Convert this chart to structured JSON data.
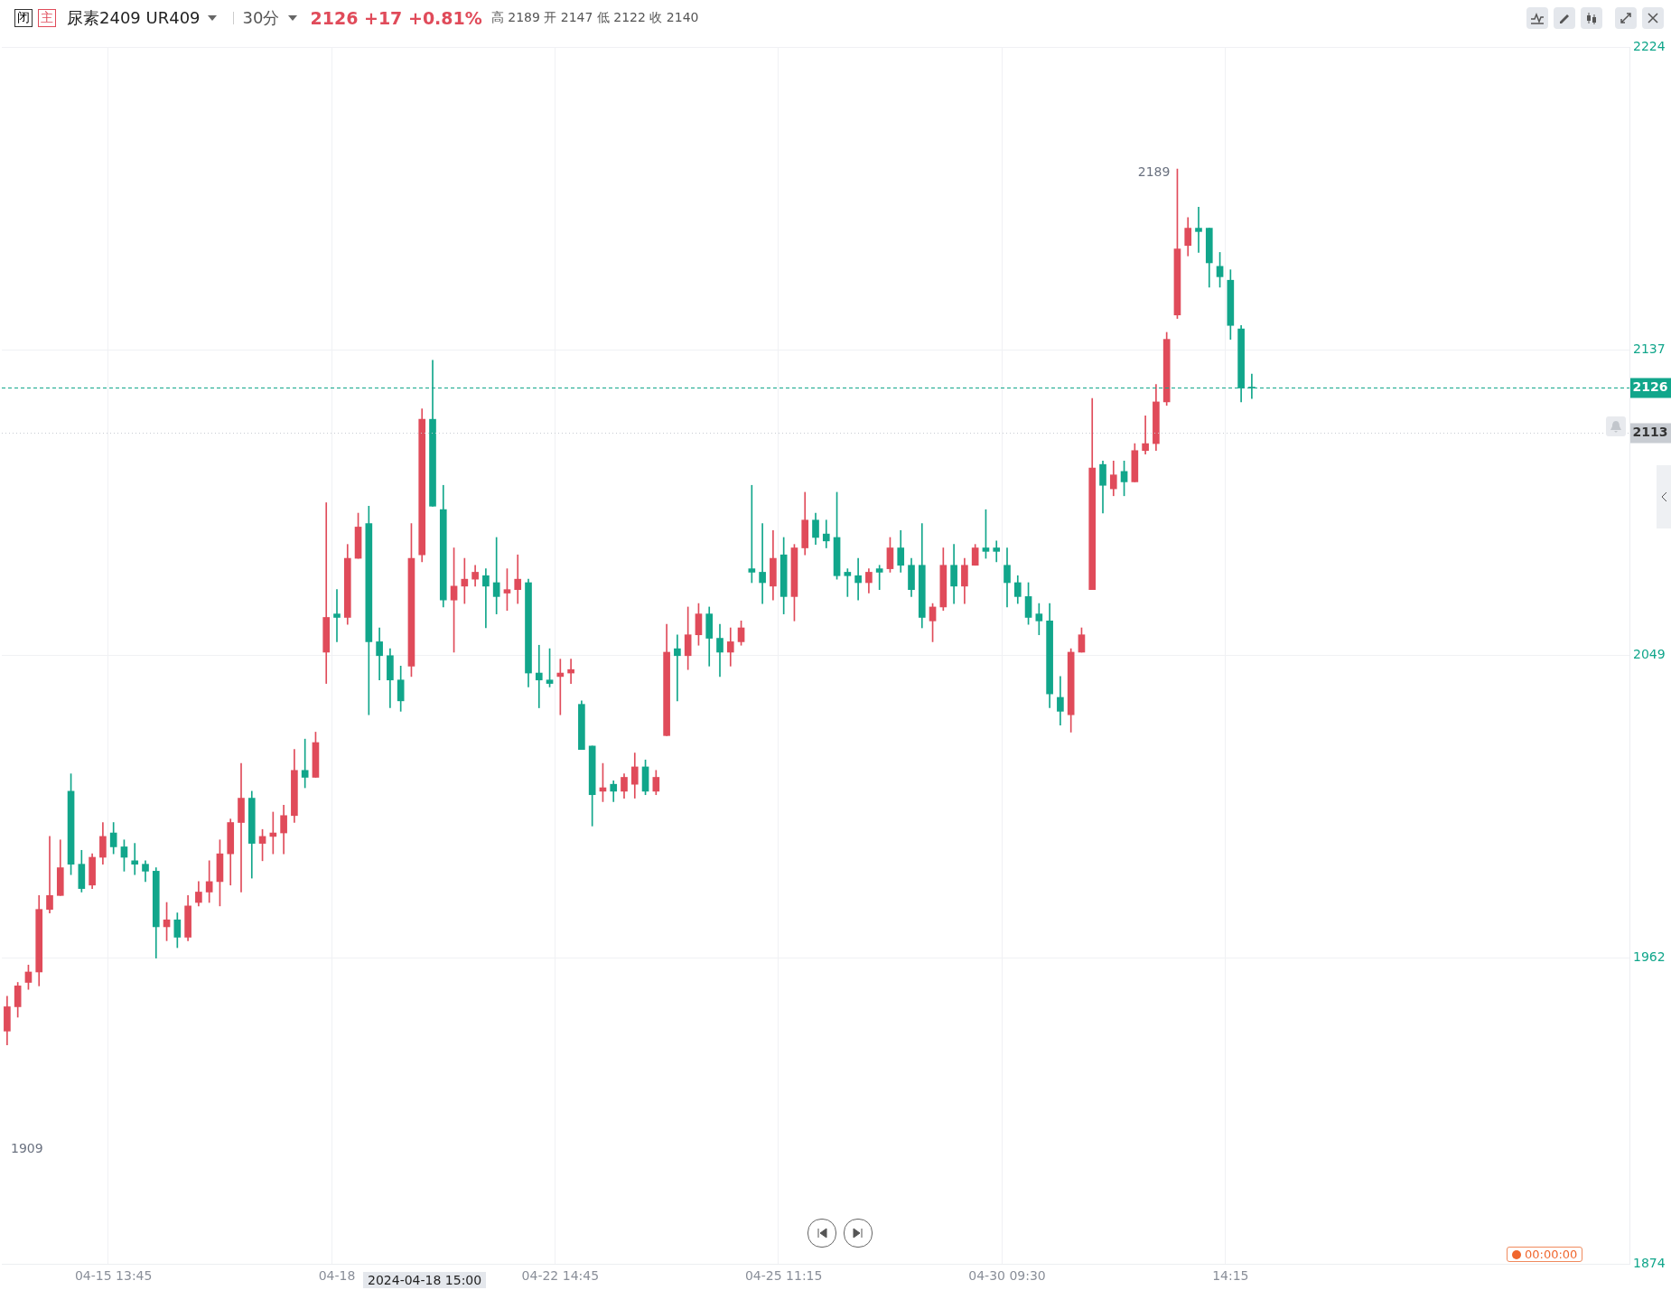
{
  "chart_data": {
    "type": "candlestick",
    "title": "尿素2409 UR409",
    "subtitle": "30分",
    "categories": [
      null,
      null,
      null,
      null,
      null,
      null,
      null,
      null,
      null,
      null,
      "04-15 13:45",
      null,
      null,
      null,
      null,
      null,
      null,
      null,
      null,
      null,
      null,
      null,
      null,
      null,
      null,
      null,
      null,
      null,
      null,
      null,
      null,
      "04-18",
      null,
      null,
      null,
      null,
      null,
      null,
      null,
      null,
      null,
      null,
      null,
      null,
      null,
      null,
      null,
      null,
      null,
      null,
      null,
      null,
      "04-22 14:45",
      null,
      null,
      null,
      null,
      null,
      null,
      null,
      null,
      null,
      null,
      null,
      null,
      null,
      null,
      null,
      null,
      null,
      null,
      null,
      null,
      "04-25 11:15",
      null,
      null,
      null,
      null,
      null,
      null,
      null,
      null,
      null,
      null,
      null,
      null,
      null,
      null,
      null,
      null,
      null,
      null,
      null,
      null,
      "04-30 09:30",
      null,
      null,
      null,
      null,
      null,
      null,
      null,
      null,
      null,
      null,
      null,
      null,
      null,
      null,
      null,
      null,
      null,
      null,
      null,
      null,
      "14:15",
      null,
      null,
      null,
      null,
      null,
      null,
      null,
      null,
      null,
      null,
      null,
      null,
      null,
      null,
      null,
      null,
      null,
      null,
      null,
      null,
      null,
      null,
      null,
      null,
      null,
      null,
      null,
      null,
      null,
      null,
      null,
      null,
      null,
      null,
      null,
      null,
      null
    ],
    "ohlc": [
      [
        1941,
        1951,
        1937,
        1948
      ],
      [
        1948,
        1955,
        1945,
        1954
      ],
      [
        1955,
        1960,
        1953,
        1958
      ],
      [
        1958,
        1980,
        1954,
        1976
      ],
      [
        1976,
        1997,
        1975,
        1980
      ],
      [
        1980,
        1996,
        1980,
        1988
      ],
      [
        2010,
        2015,
        1986,
        1989
      ],
      [
        1989,
        1993,
        1981,
        1982
      ],
      [
        1983,
        1992,
        1982,
        1991
      ],
      [
        1991,
        2001,
        1989,
        1997
      ],
      [
        1998,
        2001,
        1992,
        1994
      ],
      [
        1994,
        1996,
        1987,
        1991
      ],
      [
        1990,
        1995,
        1986,
        1989
      ],
      [
        1989,
        1990,
        1984,
        1987
      ],
      [
        1987,
        1988,
        1962,
        1971
      ],
      [
        1971,
        1978,
        1967,
        1973
      ],
      [
        1973,
        1975,
        1965,
        1968
      ],
      [
        1968,
        1980,
        1967,
        1977
      ],
      [
        1978,
        1984,
        1977,
        1981
      ],
      [
        1981,
        1990,
        1978,
        1984
      ],
      [
        1984,
        1996,
        1977,
        1992
      ],
      [
        1992,
        2002,
        1983,
        2001
      ],
      [
        2001,
        2018,
        1981,
        2008
      ],
      [
        2008,
        2010,
        1985,
        1995
      ],
      [
        1995,
        1999,
        1990,
        1997
      ],
      [
        1997,
        2004,
        1992,
        1998
      ],
      [
        1998,
        2006,
        1992,
        2003
      ],
      [
        2003,
        2022,
        2001,
        2016
      ],
      [
        2016,
        2025,
        2011,
        2014
      ],
      [
        2014,
        2027,
        2014,
        2024
      ],
      [
        2050,
        2093,
        2041,
        2060
      ],
      [
        2061,
        2068,
        2053,
        2060
      ],
      [
        2060,
        2081,
        2058,
        2077
      ],
      [
        2077,
        2090,
        2077,
        2086
      ],
      [
        2087,
        2092,
        2032,
        2053
      ],
      [
        2053,
        2057,
        2042,
        2049
      ],
      [
        2049,
        2051,
        2034,
        2042
      ],
      [
        2042,
        2046,
        2033,
        2036
      ],
      [
        2046,
        2087,
        2043,
        2077
      ],
      [
        2078,
        2120,
        2076,
        2117
      ],
      [
        2117,
        2134,
        2092,
        2092
      ],
      [
        2091,
        2098,
        2063,
        2065
      ],
      [
        2065,
        2080,
        2050,
        2069
      ],
      [
        2069,
        2077,
        2064,
        2071
      ],
      [
        2071,
        2075,
        2069,
        2073
      ],
      [
        2072,
        2074,
        2057,
        2069
      ],
      [
        2070,
        2083,
        2061,
        2066
      ],
      [
        2067,
        2074,
        2062,
        2068
      ],
      [
        2068,
        2078,
        2064,
        2071
      ],
      [
        2070,
        2071,
        2040,
        2044
      ],
      [
        2044,
        2052,
        2034,
        2042
      ],
      [
        2042,
        2051,
        2040,
        2041
      ],
      [
        2043,
        2048,
        2032,
        2044
      ],
      [
        2044,
        2048,
        2041,
        2045
      ],
      [
        2035,
        2036,
        2022,
        2022
      ],
      [
        2023,
        2023,
        2000,
        2009
      ],
      [
        2010,
        2018,
        2007,
        2011
      ],
      [
        2012,
        2013,
        2007,
        2010
      ],
      [
        2010,
        2015,
        2008,
        2014
      ],
      [
        2012,
        2021,
        2008,
        2017
      ],
      [
        2017,
        2019,
        2009,
        2010
      ],
      [
        2010,
        2016,
        2009,
        2014
      ],
      [
        2026,
        2058,
        2026,
        2050
      ],
      [
        2051,
        2055,
        2036,
        2049
      ],
      [
        2049,
        2063,
        2045,
        2055
      ],
      [
        2055,
        2064,
        2052,
        2061
      ],
      [
        2061,
        2063,
        2046,
        2054
      ],
      [
        2054,
        2058,
        2043,
        2050
      ],
      [
        2050,
        2057,
        2046,
        2053
      ],
      [
        2053,
        2059,
        2052,
        2057
      ],
      [
        2074,
        2098,
        2070,
        2073
      ],
      [
        2073,
        2087,
        2064,
        2070
      ],
      [
        2069,
        2085,
        2065,
        2077
      ],
      [
        2078,
        2083,
        2061,
        2066
      ],
      [
        2066,
        2081,
        2059,
        2080
      ],
      [
        2080,
        2096,
        2078,
        2088
      ],
      [
        2088,
        2090,
        2081,
        2083
      ],
      [
        2084,
        2088,
        2080,
        2082
      ],
      [
        2083,
        2096,
        2071,
        2072
      ],
      [
        2073,
        2074,
        2066,
        2072
      ],
      [
        2072,
        2077,
        2065,
        2070
      ],
      [
        2070,
        2074,
        2067,
        2073
      ],
      [
        2074,
        2075,
        2068,
        2073
      ],
      [
        2074,
        2083,
        2073,
        2080
      ],
      [
        2080,
        2085,
        2073,
        2075
      ],
      [
        2075,
        2077,
        2066,
        2068
      ],
      [
        2075,
        2087,
        2057,
        2060
      ],
      [
        2059,
        2064,
        2053,
        2063
      ],
      [
        2063,
        2080,
        2062,
        2075
      ],
      [
        2075,
        2081,
        2064,
        2069
      ],
      [
        2069,
        2077,
        2064,
        2075
      ],
      [
        2075,
        2081,
        2075,
        2080
      ],
      [
        2080,
        2091,
        2077,
        2079
      ],
      [
        2080,
        2082,
        2076,
        2079
      ],
      [
        2075,
        2080,
        2063,
        2070
      ],
      [
        2070,
        2072,
        2064,
        2066
      ],
      [
        2066,
        2070,
        2058,
        2060
      ],
      [
        2061,
        2064,
        2055,
        2059
      ],
      [
        2059,
        2064,
        2034,
        2038
      ],
      [
        2037,
        2043,
        2029,
        2033
      ],
      [
        2032,
        2051,
        2027,
        2050
      ],
      [
        2050,
        2057,
        2050,
        2055
      ],
      [
        2068,
        2123,
        2068,
        2103
      ],
      [
        2104,
        2105,
        2090,
        2098
      ],
      [
        2097,
        2105,
        2095,
        2101
      ],
      [
        2102,
        2105,
        2095,
        2099
      ],
      [
        2099,
        2110,
        2099,
        2108
      ],
      [
        2108,
        2118,
        2107,
        2110
      ],
      [
        2110,
        2127,
        2108,
        2122
      ],
      [
        2122,
        2142,
        2121,
        2140
      ],
      [
        2147,
        2189,
        2146,
        2166
      ],
      [
        2167,
        2175,
        2164,
        2172
      ],
      [
        2172,
        2178,
        2165,
        2171
      ],
      [
        2172,
        2172,
        2155,
        2162
      ],
      [
        2161,
        2165,
        2155,
        2158
      ],
      [
        2157,
        2160,
        2140,
        2144
      ],
      [
        2143,
        2144,
        2122,
        2126
      ],
      [
        2126,
        2130,
        2123,
        2126
      ],
      null,
      null,
      null,
      null,
      null,
      null,
      null,
      null,
      null,
      null,
      null,
      null,
      null,
      null,
      null,
      null,
      null,
      null,
      null,
      null,
      null,
      null,
      null,
      null,
      null,
      null,
      null,
      null,
      null,
      null,
      null,
      null,
      null,
      null,
      null
    ],
    "colors": [
      "#e04b5a",
      "#e04b5a",
      "#e04b5a",
      "#e04b5a",
      "#e04b5a",
      "#e04b5a",
      "#11a68b",
      "#11a68b",
      "#e04b5a",
      "#e04b5a",
      "#11a68b",
      "#11a68b",
      "#11a68b",
      "#11a68b",
      "#11a68b",
      "#e04b5a",
      "#11a68b",
      "#e04b5a",
      "#e04b5a",
      "#e04b5a",
      "#e04b5a",
      "#e04b5a",
      "#e04b5a",
      "#11a68b",
      "#e04b5a",
      "#e04b5a",
      "#e04b5a",
      "#e04b5a",
      "#11a68b",
      "#e04b5a",
      "#e04b5a",
      "#11a68b",
      "#e04b5a",
      "#e04b5a",
      "#11a68b",
      "#11a68b",
      "#11a68b",
      "#11a68b",
      "#e04b5a",
      "#e04b5a",
      "#11a68b",
      "#11a68b",
      "#e04b5a",
      "#e04b5a",
      "#e04b5a",
      "#11a68b",
      "#11a68b",
      "#e04b5a",
      "#e04b5a",
      "#11a68b",
      "#11a68b",
      "#11a68b",
      "#e04b5a",
      "#e04b5a",
      "#11a68b",
      "#11a68b",
      "#e04b5a",
      "#11a68b",
      "#e04b5a",
      "#e04b5a",
      "#11a68b",
      "#e04b5a",
      "#e04b5a",
      "#11a68b",
      "#e04b5a",
      "#e04b5a",
      "#11a68b",
      "#11a68b",
      "#e04b5a",
      "#e04b5a",
      "#11a68b",
      "#11a68b",
      "#e04b5a",
      "#11a68b",
      "#e04b5a",
      "#e04b5a",
      "#11a68b",
      "#11a68b",
      "#11a68b",
      "#11a68b",
      "#11a68b",
      "#e04b5a",
      "#11a68b",
      "#e04b5a",
      "#11a68b",
      "#11a68b",
      "#11a68b",
      "#e04b5a",
      "#e04b5a",
      "#11a68b",
      "#e04b5a",
      "#e04b5a",
      "#11a68b",
      "#11a68b",
      "#11a68b",
      "#11a68b",
      "#11a68b",
      "#11a68b",
      "#11a68b",
      "#11a68b",
      "#e04b5a",
      "#e04b5a",
      "#e04b5a",
      "#11a68b",
      "#e04b5a",
      "#11a68b",
      "#e04b5a",
      "#e04b5a",
      "#e04b5a",
      "#e04b5a",
      "#e04b5a",
      "#e04b5a",
      "#11a68b",
      "#11a68b",
      "#11a68b",
      "#11a68b",
      "#11a68b",
      "#11a68b",
      null,
      null,
      null,
      null,
      null,
      null,
      null,
      null,
      null,
      null,
      null,
      null,
      null,
      null,
      null,
      null,
      null,
      null,
      null,
      null,
      null,
      null,
      null,
      null,
      null,
      null,
      null,
      null,
      null,
      null,
      null,
      null,
      null,
      null,
      null
    ],
    "ylim": [
      1874,
      2224
    ],
    "yticks": [
      1874,
      1962,
      2049,
      2137,
      2224
    ],
    "grid": true,
    "ref_lines": [
      {
        "axis": "y",
        "value": 2126,
        "label": "2126",
        "color": "#11a68b",
        "line_style": "dashed"
      },
      {
        "axis": "y",
        "value": 2113,
        "label": "2113",
        "color": "#c8ccd2",
        "line_style": "dotted"
      }
    ],
    "annotations": [
      "闭",
      "主",
      "2126 +17 +0.81%",
      "高 2189 开 2147 低 2122 收 2140",
      "2024-04-18 15:00",
      "00:00:00",
      "2189",
      "1909"
    ]
  }
}
